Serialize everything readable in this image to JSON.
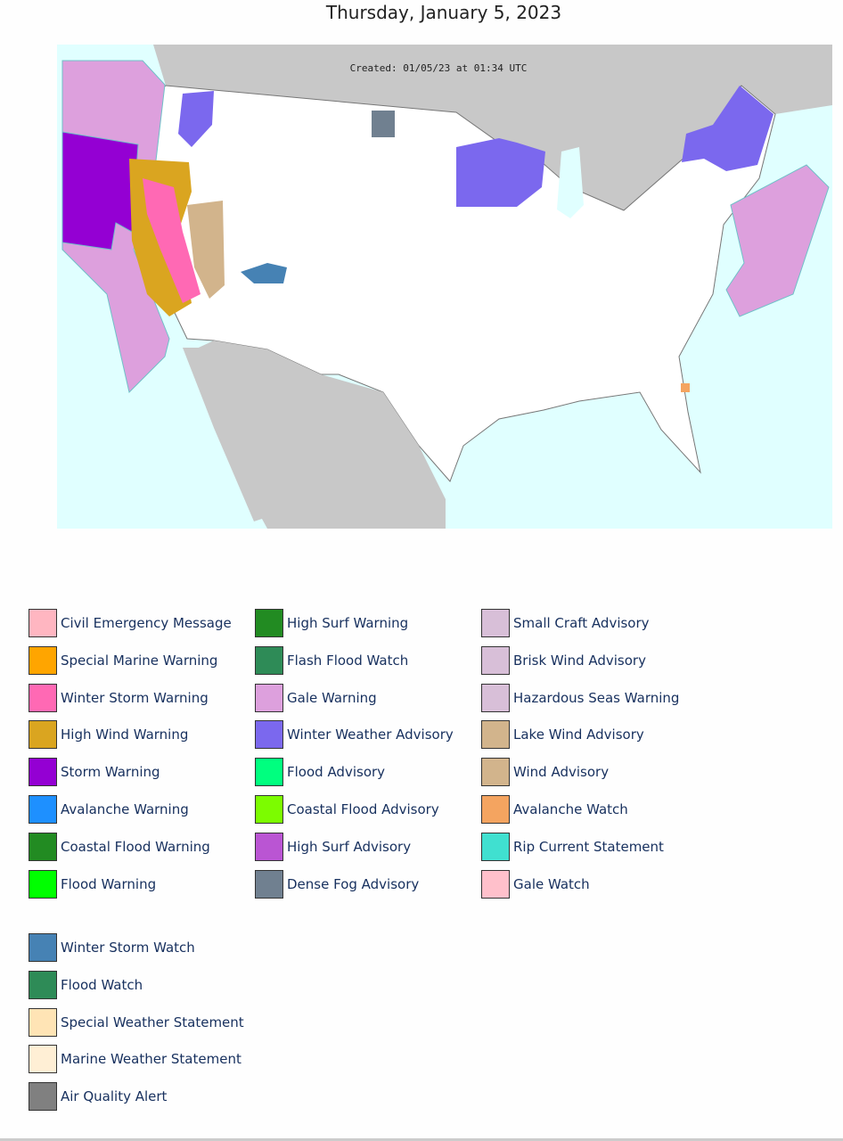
{
  "header": {
    "title": "Thursday, January 5, 2023"
  },
  "map": {
    "created": "Created: 01/05/23 at 01:34 UTC"
  },
  "legend": {
    "columns": [
      [
        {
          "label": "Civil Emergency Message",
          "color": "#FFB6C1"
        },
        {
          "label": "Special Marine Warning",
          "color": "#FFA500"
        },
        {
          "label": "Winter Storm Warning",
          "color": "#FF69B4"
        },
        {
          "label": "High Wind Warning",
          "color": "#DAA520"
        },
        {
          "label": "Storm Warning",
          "color": "#9400D3"
        },
        {
          "label": "Avalanche Warning",
          "color": "#1E90FF"
        },
        {
          "label": "Coastal Flood Warning",
          "color": "#228B22"
        },
        {
          "label": "Flood Warning",
          "color": "#00FF00"
        }
      ],
      [
        {
          "label": "High Surf Warning",
          "color": "#228B22"
        },
        {
          "label": "Flash Flood Watch",
          "color": "#2E8B57"
        },
        {
          "label": "Gale Warning",
          "color": "#DDA0DD"
        },
        {
          "label": "Winter Weather Advisory",
          "color": "#7B68EE"
        },
        {
          "label": "Flood Advisory",
          "color": "#00FF7F"
        },
        {
          "label": "Coastal Flood Advisory",
          "color": "#7CFC00"
        },
        {
          "label": "High Surf Advisory",
          "color": "#BA55D3"
        },
        {
          "label": "Dense Fog Advisory",
          "color": "#708090"
        }
      ],
      [
        {
          "label": "Small Craft Advisory",
          "color": "#D8BFD8"
        },
        {
          "label": "Brisk Wind Advisory",
          "color": "#D8BFD8"
        },
        {
          "label": "Hazardous Seas Warning",
          "color": "#D8BFD8"
        },
        {
          "label": "Lake Wind Advisory",
          "color": "#D2B48C"
        },
        {
          "label": "Wind Advisory",
          "color": "#D2B48C"
        },
        {
          "label": "Avalanche Watch",
          "color": "#F4A460"
        },
        {
          "label": "Rip Current Statement",
          "color": "#40E0D0"
        },
        {
          "label": "Gale Watch",
          "color": "#FFC0CB"
        }
      ],
      [
        {
          "label": "Winter Storm Watch",
          "color": "#4682B4"
        },
        {
          "label": "Flood Watch",
          "color": "#2E8B57"
        },
        {
          "label": "Special Weather Statement",
          "color": "#FFE4B5"
        },
        {
          "label": "Marine Weather Statement",
          "color": "#FFEFD5"
        },
        {
          "label": "Air Quality Alert",
          "color": "#808080"
        }
      ]
    ]
  }
}
